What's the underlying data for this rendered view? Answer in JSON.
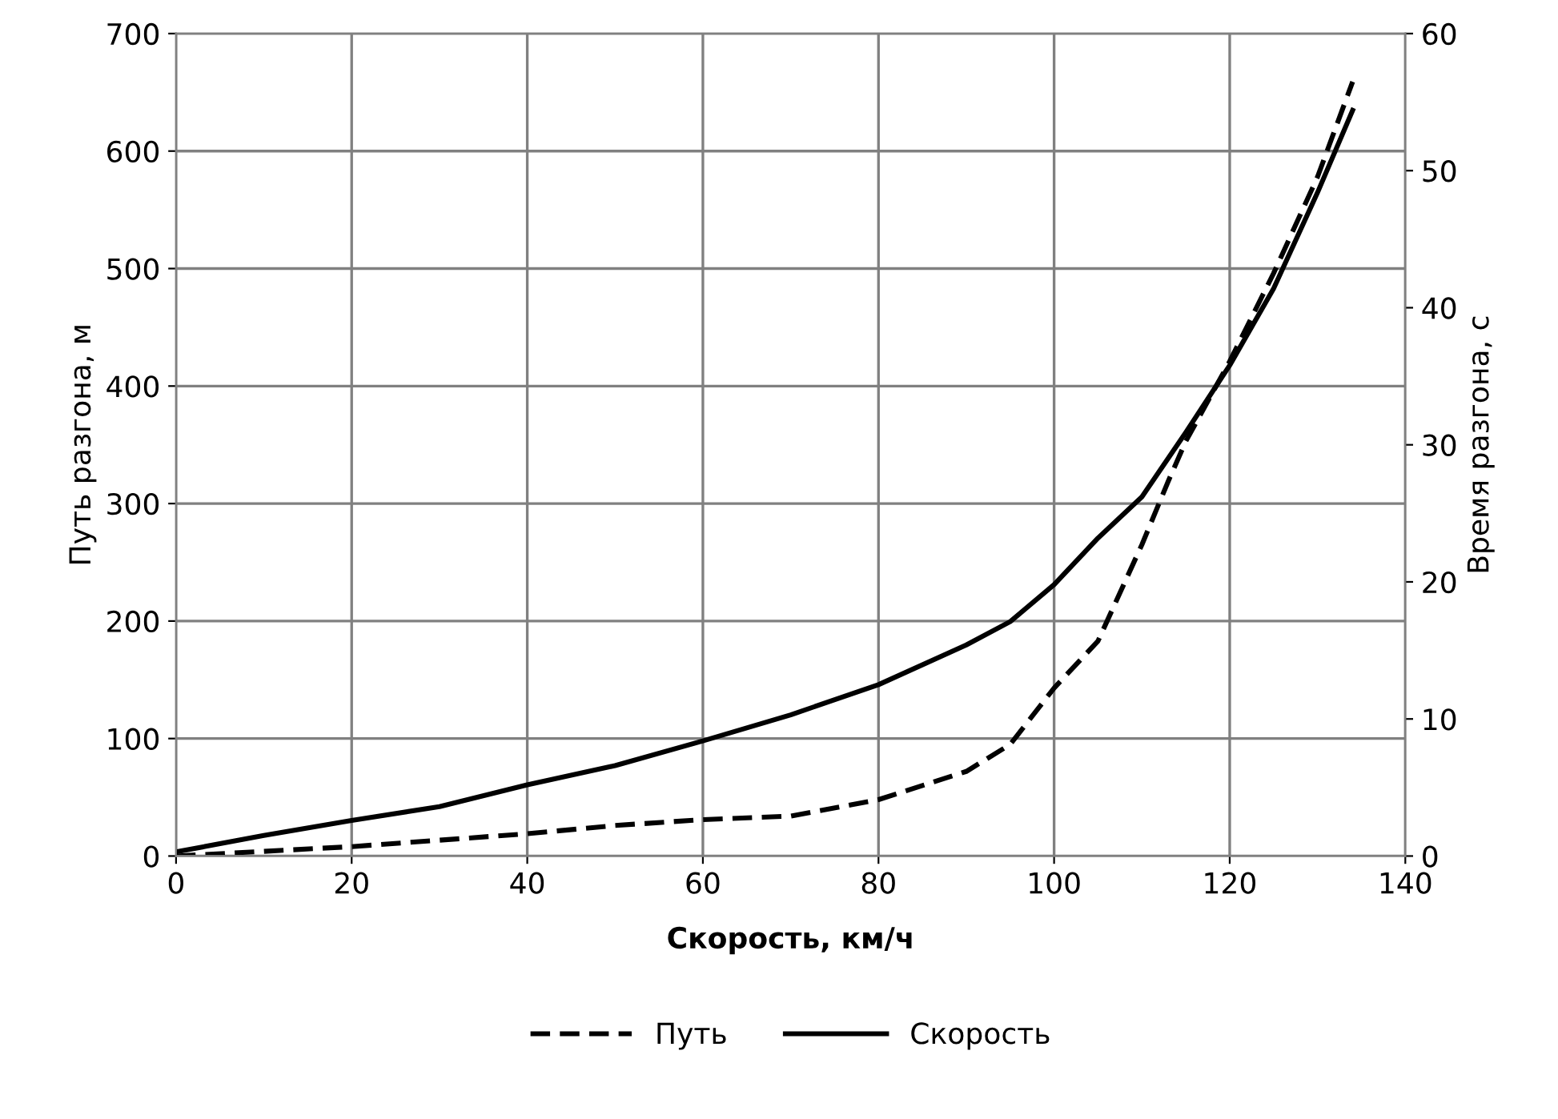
{
  "chart_data": {
    "type": "line",
    "xlabel": "Скорость, км/ч",
    "ylabel": "Путь разгона, м",
    "y2label": "Время разгона, с",
    "xlim": [
      0,
      140
    ],
    "xticks": [
      0,
      20,
      40,
      60,
      80,
      100,
      120,
      140
    ],
    "ylim": [
      0,
      700
    ],
    "yticks": [
      0,
      100,
      200,
      300,
      400,
      500,
      600,
      700
    ],
    "y2lim": [
      0,
      60
    ],
    "y2ticks": [
      0,
      10,
      20,
      30,
      40,
      50,
      60
    ],
    "grid": true,
    "legend": "bottom",
    "marker": "none",
    "series": [
      {
        "name": "Путь",
        "color": "#000000",
        "line_style": "dashed",
        "axis": "y",
        "x": [
          0,
          20,
          40,
          50,
          60,
          70,
          80,
          90,
          95,
          100,
          105,
          110,
          113,
          115,
          120,
          125,
          130,
          134
        ],
        "values": [
          0,
          8,
          19,
          26,
          31,
          34,
          48,
          72,
          95,
          143,
          183,
          265,
          319,
          353,
          421,
          496,
          578,
          659
        ]
      },
      {
        "name": "Скорость",
        "color": "#000000",
        "line_style": "solid",
        "axis": "y2",
        "x": [
          0,
          10,
          20,
          30,
          40,
          50,
          60,
          70,
          80,
          90,
          95,
          100,
          105,
          110,
          115,
          120,
          125,
          130,
          134
        ],
        "values": [
          0.3,
          1.5,
          2.6,
          3.6,
          5.2,
          6.6,
          8.4,
          10.3,
          12.5,
          15.4,
          17.1,
          19.8,
          23.2,
          26.2,
          30.9,
          35.8,
          41.4,
          48.4,
          54.4
        ]
      }
    ]
  }
}
